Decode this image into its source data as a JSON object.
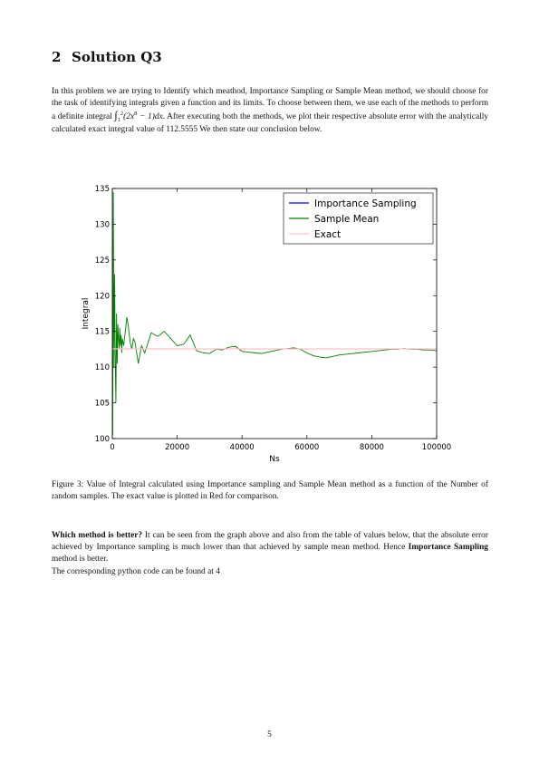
{
  "section": {
    "number": "2",
    "title": "Solution Q3"
  },
  "intro": {
    "part1": "In this problem we are trying to Identify which meathod, Importance Sampling or Sample Mean method, we should choose for the task of identifying integrals given a function and its limits.  To choose between them, we use each of the methods to perform a definite integral ",
    "integral_lower": "1",
    "integral_upper": "2",
    "integrand_open": "(2x",
    "integrand_power": "8",
    "integrand_close": " − 1)dx",
    "part2": ". After executing both the methods, we plot their respective absolute error with the analytically calculated exact integral value of 112.5555 We then state our conclusion below."
  },
  "figure": {
    "caption": "Figure 3:  Value of Integral calculated using Importance sampling and Sample Mean method as a function of the Number of random samples. The exact value is plotted in Red for comparison."
  },
  "conclusion": {
    "lead": "Which method is better?",
    "body1": " It can be seen from the graph above and also from the table of values below, that the absolute error achieved by Importance sampling is much lower than that achieved by sample mean method. Hence ",
    "emphasis": "Importance Sampling",
    "body2": " method is better.",
    "code_note": "The corresponding python code can be found at 4"
  },
  "page_number": "5",
  "chart_data": {
    "type": "line",
    "xlabel": "Ns",
    "ylabel": "Integral",
    "xlim": [
      0,
      100000
    ],
    "ylim": [
      100,
      135
    ],
    "xticks": [
      0,
      20000,
      40000,
      60000,
      80000,
      100000
    ],
    "yticks": [
      100,
      105,
      110,
      115,
      120,
      125,
      130,
      135
    ],
    "grid": false,
    "legend_position": "top-right",
    "series": [
      {
        "name": "Importance Sampling",
        "color": "#0000ff",
        "x": [
          100,
          1000,
          2000,
          5000,
          10000,
          20000,
          40000,
          60000,
          80000,
          100000
        ],
        "y": [
          112.6,
          112.55,
          112.56,
          112.55,
          112.556,
          112.555,
          112.556,
          112.555,
          112.555,
          112.556
        ]
      },
      {
        "name": "Sample Mean",
        "color": "#008000",
        "x": [
          100,
          300,
          500,
          700,
          900,
          1100,
          1300,
          1500,
          1700,
          1900,
          2100,
          2300,
          2500,
          2700,
          2900,
          3100,
          3500,
          4000,
          4500,
          5000,
          5500,
          6000,
          6500,
          7000,
          8000,
          9000,
          10000,
          12000,
          14000,
          16000,
          18000,
          20000,
          22000,
          24000,
          26000,
          28000,
          30000,
          32000,
          34000,
          36000,
          38000,
          40000,
          42000,
          44000,
          46000,
          48000,
          50000,
          52000,
          54000,
          56000,
          58000,
          60000,
          62000,
          64000,
          66000,
          68000,
          70000,
          72000,
          74000,
          76000,
          78000,
          80000,
          82000,
          84000,
          86000,
          88000,
          90000,
          92000,
          94000,
          96000,
          98000,
          100000
        ],
        "y": [
          100.5,
          134.5,
          110.0,
          123.0,
          111.0,
          105.0,
          117.5,
          110.5,
          116.0,
          114.0,
          112.5,
          115.5,
          113.0,
          114.5,
          112.0,
          114.0,
          113.0,
          115.0,
          117.0,
          115.5,
          113.5,
          112.5,
          114.0,
          113.5,
          110.5,
          113.0,
          112.0,
          114.8,
          114.3,
          115.0,
          114.0,
          113.0,
          113.2,
          114.5,
          112.3,
          112.0,
          111.9,
          112.5,
          112.4,
          112.8,
          112.9,
          112.2,
          112.1,
          112.0,
          111.9,
          112.1,
          112.3,
          112.5,
          112.6,
          112.7,
          112.5,
          112.0,
          111.6,
          111.4,
          111.3,
          111.5,
          111.7,
          111.8,
          111.9,
          112.0,
          112.1,
          112.2,
          112.3,
          112.4,
          112.5,
          112.5,
          112.6,
          112.5,
          112.5,
          112.4,
          112.4,
          112.3
        ]
      },
      {
        "name": "Exact",
        "color": "#ffc0cb",
        "x": [
          0,
          100000
        ],
        "y": [
          112.5555,
          112.5555
        ]
      }
    ]
  }
}
